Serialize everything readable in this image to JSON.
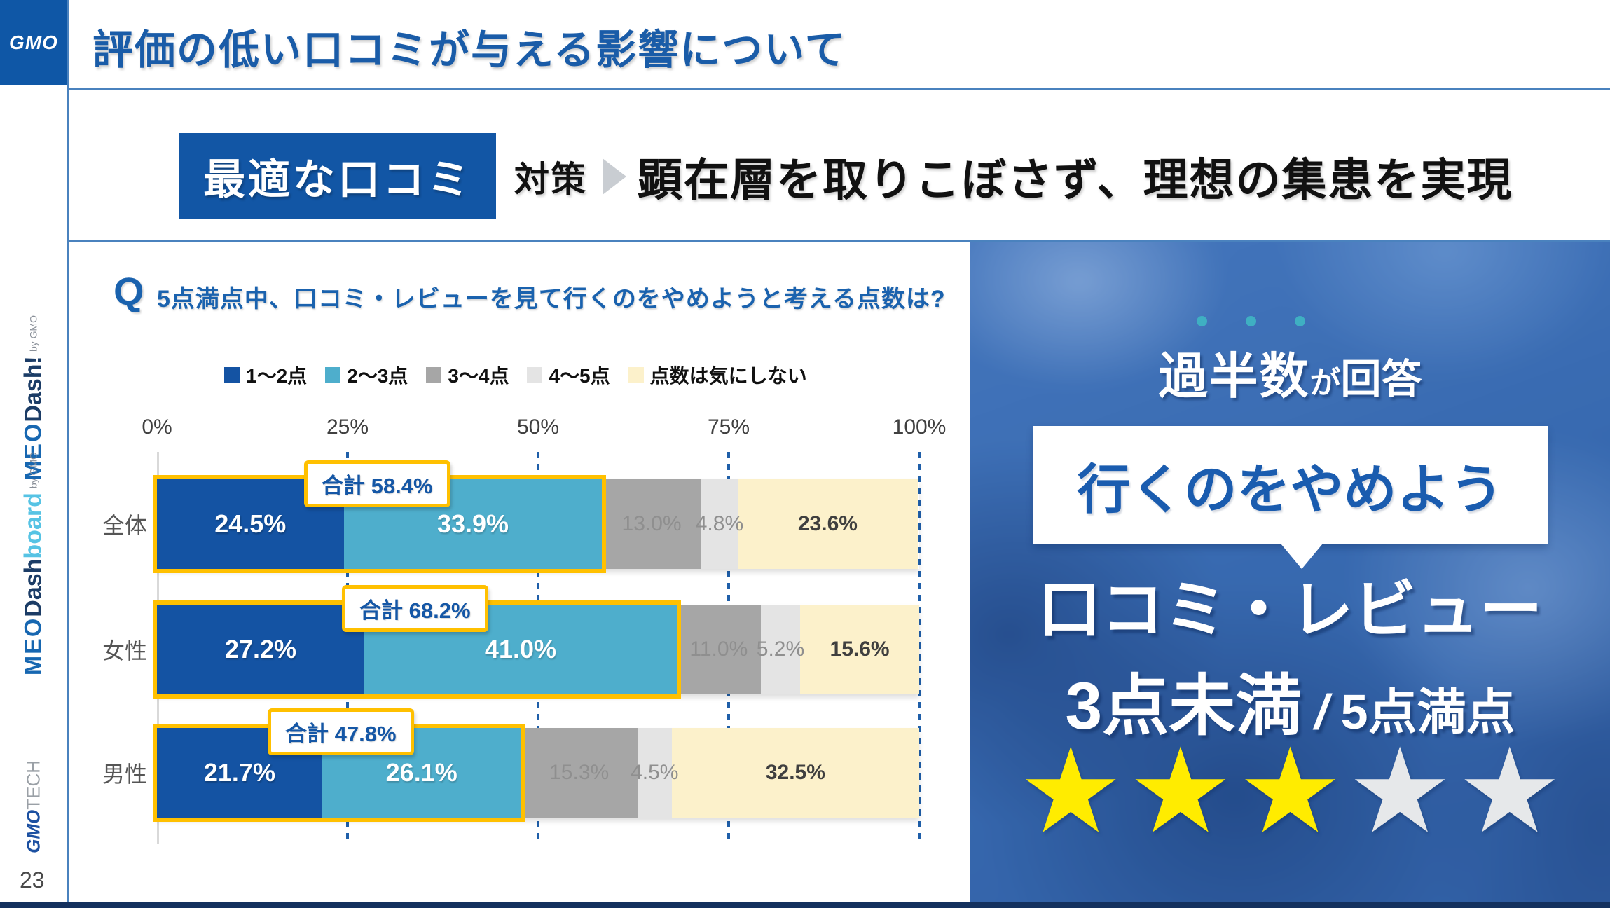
{
  "header": {
    "logo_text": "GMO",
    "title": "評価の低い口コミが与える影響について"
  },
  "sidebar": {
    "logo_meodash": {
      "meo": "MEO",
      "dash": "Dash!",
      "by": "by GMO"
    },
    "logo_meodashboard": {
      "meo": "MEO",
      "dash": "Dash",
      "board": "board",
      "by": "by GMO"
    },
    "logo_gmotech": {
      "gmo": "GMO",
      "tech": "TECH"
    },
    "page_number": "23"
  },
  "subtitle": {
    "highlight": "最適な口コミ",
    "label": "対策",
    "text": "顕在層を取りこぼさず、理想の集患を実現"
  },
  "chart": {
    "q_mark": "Q",
    "question": "5点満点中、口コミ・レビューを見て行くのをやめようと考える点数は?"
  },
  "chart_data": {
    "type": "bar",
    "orientation": "horizontal-stacked",
    "title": "5点満点中、口コミ・レビューを見て行くのをやめようと考える点数は?",
    "categories": [
      "全体",
      "女性",
      "男性"
    ],
    "series": [
      {
        "name": "1〜2点",
        "color": "#1453A3",
        "values": [
          24.5,
          27.2,
          21.7
        ]
      },
      {
        "name": "2〜3点",
        "color": "#4EAECC",
        "values": [
          33.9,
          41.0,
          26.1
        ]
      },
      {
        "name": "3〜4点",
        "color": "#A6A6A6",
        "values": [
          13.0,
          11.0,
          15.3
        ]
      },
      {
        "name": "4〜5点",
        "color": "#E4E4E4",
        "values": [
          4.8,
          5.2,
          4.5
        ]
      },
      {
        "name": "点数は気にしない",
        "color": "#FCF1CB",
        "values": [
          23.6,
          15.6,
          32.5
        ]
      }
    ],
    "segment_labels": [
      [
        "24.5%",
        "33.9%",
        "13.0%",
        "4.8%",
        "23.6%"
      ],
      [
        "27.2%",
        "41.0%",
        "11.0%",
        "5.2%",
        "15.6%"
      ],
      [
        "21.7%",
        "26.1%",
        "15.3%",
        "4.5%",
        "32.5%"
      ]
    ],
    "totals": [
      {
        "label": "合計 58.4%",
        "value": 58.4
      },
      {
        "label": "合計 68.2%",
        "value": 68.2
      },
      {
        "label": "合計 47.8%",
        "value": 47.8
      }
    ],
    "x_ticks": [
      "0%",
      "25%",
      "50%",
      "75%",
      "100%"
    ],
    "x_range": [
      0,
      100
    ],
    "grid": "dotted-vertical",
    "legend_position": "top",
    "highlight_outline_color": "#FFC000"
  },
  "panel": {
    "headline": {
      "big": "過半数",
      "small": "が",
      "mid": "回答"
    },
    "callout": "行くのをやめよう",
    "line1": "口コミ・レビュー",
    "score": {
      "big": "3点未満",
      "sep": "/",
      "small": "5点満点"
    },
    "stars": {
      "filled": 3,
      "total": 5,
      "glyph": "★",
      "filled_color": "#FFEC00",
      "empty_color": "#E6E8EA"
    },
    "dots_count": 3
  }
}
